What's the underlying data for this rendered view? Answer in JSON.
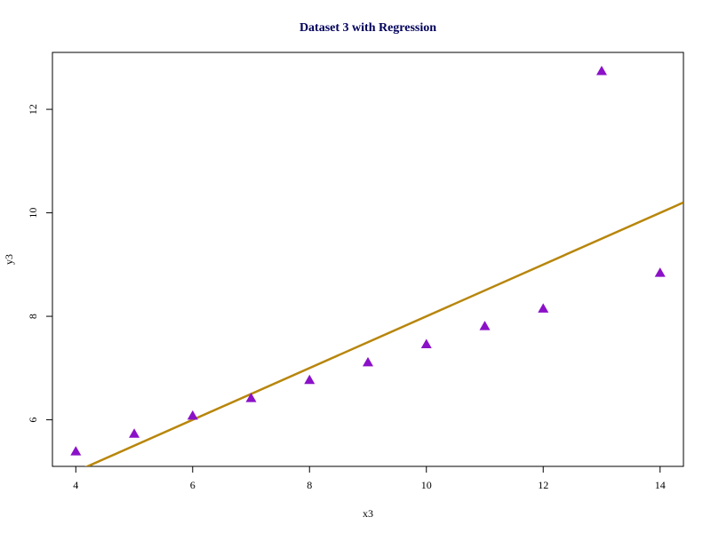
{
  "chart_data": {
    "type": "scatter",
    "title": "Dataset 3 with Regression",
    "xlabel": "x3",
    "ylabel": "y3",
    "xlim": [
      3.6,
      14.4
    ],
    "ylim": [
      5.1,
      13.1
    ],
    "xticks": [
      4,
      6,
      8,
      10,
      12,
      14
    ],
    "yticks": [
      6,
      8,
      10,
      12
    ],
    "series": [
      {
        "x": [
          10,
          8,
          13,
          9,
          11,
          14,
          6,
          4,
          12,
          7,
          5
        ],
        "y": [
          7.46,
          6.77,
          12.74,
          7.11,
          7.81,
          8.84,
          6.08,
          5.39,
          8.15,
          6.42,
          5.73
        ],
        "marker": "triangle",
        "color": "#8B11C8"
      }
    ],
    "regression_line": {
      "intercept": 3.0,
      "slope": 0.5,
      "color": "#B8860B"
    },
    "title_color": "#00005A",
    "grid": false,
    "legend": "none"
  }
}
